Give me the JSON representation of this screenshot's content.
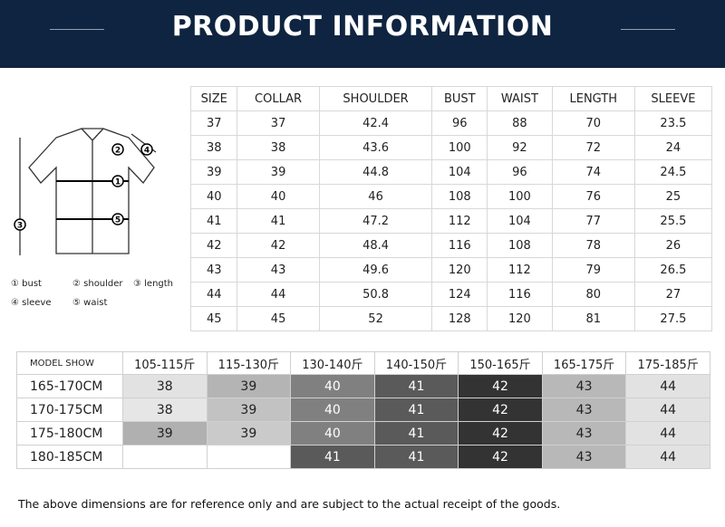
{
  "header": {
    "title": "PRODUCT INFORMATION"
  },
  "diagram": {
    "legend": [
      "① bust",
      "② shoulder",
      "③ length",
      "④ sleeve",
      "⑤ waist"
    ],
    "markers": [
      "1",
      "2",
      "3",
      "4",
      "5"
    ]
  },
  "size_table": {
    "columns": [
      "SIZE",
      "COLLAR",
      "SHOULDER",
      "BUST",
      "WAIST",
      "LENGTH",
      "SLEEVE"
    ],
    "rows": [
      [
        "37",
        "37",
        "42.4",
        "96",
        "88",
        "70",
        "23.5"
      ],
      [
        "38",
        "38",
        "43.6",
        "100",
        "92",
        "72",
        "24"
      ],
      [
        "39",
        "39",
        "44.8",
        "104",
        "96",
        "74",
        "24.5"
      ],
      [
        "40",
        "40",
        "46",
        "108",
        "100",
        "76",
        "25"
      ],
      [
        "41",
        "41",
        "47.2",
        "112",
        "104",
        "77",
        "25.5"
      ],
      [
        "42",
        "42",
        "48.4",
        "116",
        "108",
        "78",
        "26"
      ],
      [
        "43",
        "43",
        "49.6",
        "120",
        "112",
        "79",
        "26.5"
      ],
      [
        "44",
        "44",
        "50.8",
        "124",
        "116",
        "80",
        "27"
      ],
      [
        "45",
        "45",
        "52",
        "128",
        "120",
        "81",
        "27.5"
      ]
    ]
  },
  "model_table": {
    "corner": "MODEL SHOW",
    "columns": [
      "105-115斤",
      "115-130斤",
      "130-140斤",
      "140-150斤",
      "150-165斤",
      "165-175斤",
      "175-185斤"
    ],
    "rows": [
      {
        "height": "165-170CM",
        "cells": [
          "38",
          "39",
          "40",
          "41",
          "42",
          "43",
          "44"
        ],
        "colors": [
          "#e2e2e2",
          "#b4b4b4",
          "#808080",
          "#5a5a5a",
          "#333333",
          "#b8b8b8",
          "#e2e2e2"
        ]
      },
      {
        "height": "170-175CM",
        "cells": [
          "38",
          "39",
          "40",
          "41",
          "42",
          "43",
          "44"
        ],
        "colors": [
          "#e6e6e6",
          "#c2c2c2",
          "#808080",
          "#5a5a5a",
          "#333333",
          "#b8b8b8",
          "#e2e2e2"
        ]
      },
      {
        "height": "175-180CM",
        "cells": [
          "39",
          "39",
          "40",
          "41",
          "42",
          "43",
          "44"
        ],
        "colors": [
          "#b0b0b0",
          "#cacaca",
          "#808080",
          "#5a5a5a",
          "#333333",
          "#b8b8b8",
          "#e2e2e2"
        ]
      },
      {
        "height": "180-185CM",
        "cells": [
          null,
          null,
          "41",
          "41",
          "42",
          "43",
          "44"
        ],
        "colors": [
          "#ffffff",
          "#ffffff",
          "#5a5a5a",
          "#5a5a5a",
          "#333333",
          "#b8b8b8",
          "#e2e2e2"
        ]
      }
    ]
  },
  "note": "The above dimensions are for reference only and are subject to the actual receipt of the goods."
}
